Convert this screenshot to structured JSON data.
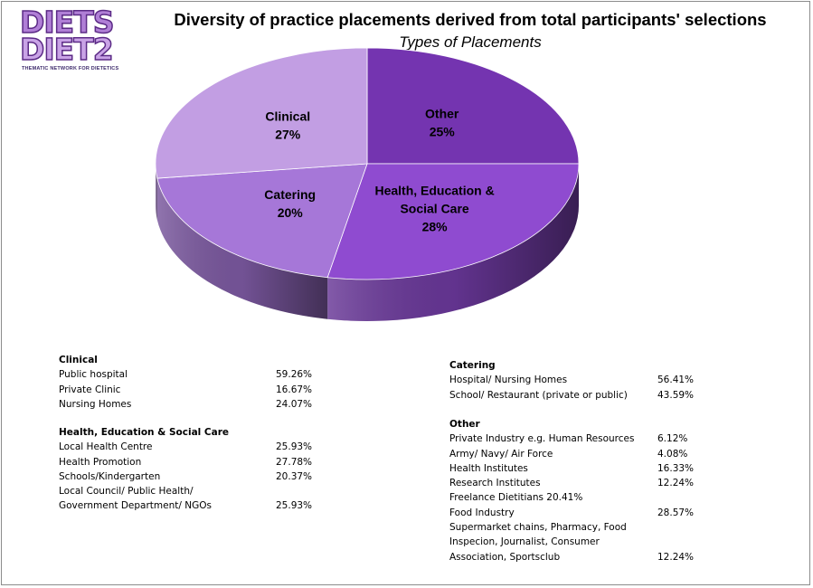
{
  "logo": {
    "line1": "DIETS",
    "line2": "DIET2",
    "tagline": "THEMATIC NETWORK FOR DIETETICS"
  },
  "chart_data": {
    "type": "pie",
    "title": "Diversity of practice placements derived from total participants' selections",
    "subtitle": "Types of Placements",
    "slices": [
      {
        "name": "Other",
        "label_lines": [
          "Other"
        ],
        "pct_label": "25%",
        "value": 25,
        "color": "#7434b0"
      },
      {
        "name": "Health, Education & Social Care",
        "label_lines": [
          "Health, Education &",
          "Social Care"
        ],
        "pct_label": "28%",
        "value": 28,
        "color": "#8f4bd0"
      },
      {
        "name": "Catering",
        "label_lines": [
          "Catering"
        ],
        "pct_label": "20%",
        "value": 20,
        "color": "#a677d8"
      },
      {
        "name": "Clinical",
        "label_lines": [
          "Clinical"
        ],
        "pct_label": "27%",
        "value": 27,
        "color": "#c29ee3"
      }
    ]
  },
  "tables": {
    "clinical": {
      "heading": "Clinical",
      "rows": [
        {
          "label": "Public hospital",
          "value": "59.26%"
        },
        {
          "label": "Private Clinic",
          "value": "16.67%"
        },
        {
          "label": "Nursing Homes",
          "value": "24.07%"
        }
      ]
    },
    "hesc": {
      "heading": "Health, Education  & Social Care",
      "rows": [
        {
          "label": "Local Health Centre",
          "value": "25.93%"
        },
        {
          "label": "Health Promotion",
          "value": "27.78%"
        },
        {
          "label": "Schools/Kindergarten",
          "value": "20.37%"
        },
        {
          "label": "Local Council/ Public Health/",
          "value": ""
        },
        {
          "label": "Government Department/ NGOs",
          "value": "25.93%"
        }
      ]
    },
    "catering": {
      "heading": "Catering",
      "rows": [
        {
          "label": "Hospital/ Nursing Homes",
          "value": "56.41%"
        },
        {
          "label": "School/ Restaurant  (private or public)",
          "value": "43.59%"
        }
      ]
    },
    "other": {
      "heading": "Other",
      "rows": [
        {
          "label": "Private Industry e.g. Human Resources",
          "value": "6.12%"
        },
        {
          "label": "Army/ Navy/ Air Force",
          "value": "4.08%"
        },
        {
          "label": "Health Institutes",
          "value": "16.33%"
        },
        {
          "label": "Research Institutes",
          "value": "12.24%"
        },
        {
          "label": "Freelance Dietitians    20.41%",
          "value": ""
        },
        {
          "label": "Food Industry",
          "value": "28.57%"
        },
        {
          "label": "Supermarket chains, Pharmacy, Food",
          "value": ""
        },
        {
          "label": "Inspecion, Journalist,  Consumer",
          "value": ""
        },
        {
          "label": "Association, Sportsclub",
          "value": "12.24%"
        }
      ]
    }
  }
}
